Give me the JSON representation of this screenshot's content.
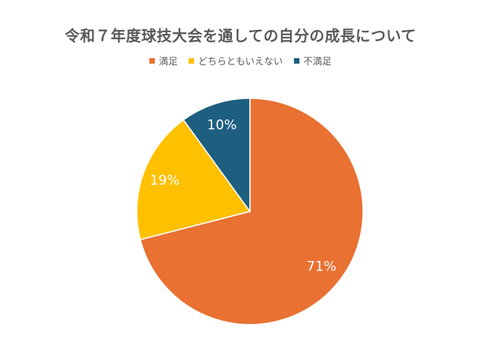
{
  "chart_data": {
    "type": "pie",
    "title": "令和７年度球技大会を通しての自分の成長について",
    "categories": [
      "満足",
      "どちらともいえない",
      "不満足"
    ],
    "values": [
      71,
      19,
      10
    ],
    "labels": [
      "71%",
      "19%",
      "10%"
    ],
    "colors": [
      "#E97132",
      "#FFC000",
      "#1E5F7F"
    ],
    "legend_position": "top"
  }
}
